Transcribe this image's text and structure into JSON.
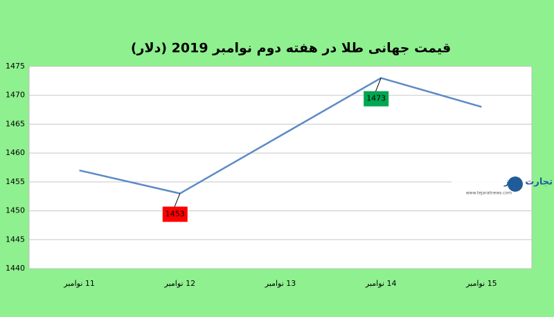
{
  "chart_data": {
    "type": "line",
    "title": "قیمت جهانی طلا در هفته دوم نوامبر 2019 (دلار)",
    "categories": [
      "11 نوامبر",
      "12 نوامبر",
      "13 نوامبر",
      "14 نوامبر",
      "15 نوامبر"
    ],
    "values": [
      1457,
      1453,
      1463,
      1473,
      1468
    ],
    "color": "#5b8ac6",
    "label_colors": [
      null,
      "#ff0000",
      null,
      "#00a651",
      null
    ],
    "ylim": [
      1440,
      1475
    ],
    "yticks": [
      1440,
      1445,
      1450,
      1455,
      1460,
      1465,
      1470,
      1475
    ],
    "grid": true
  },
  "logo": {
    "name": "تجارت نیوز",
    "url": "www.tejaratnews.com"
  }
}
